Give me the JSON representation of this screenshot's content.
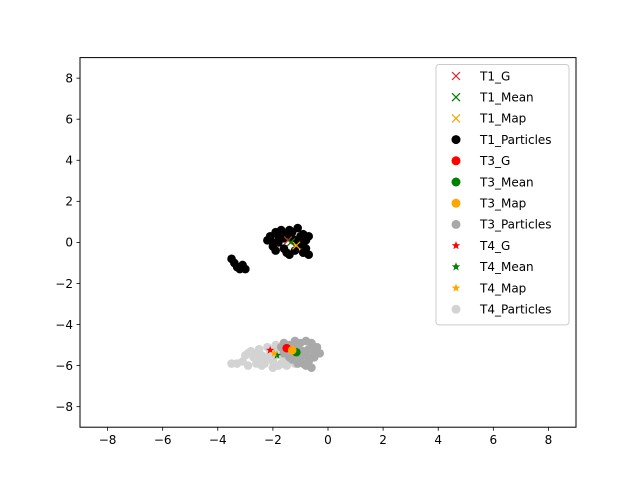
{
  "chart_data": {
    "type": "scatter",
    "title": "",
    "xlabel": "",
    "ylabel": "",
    "xlim": [
      -9,
      9
    ],
    "ylim": [
      -9,
      9
    ],
    "xticks": [
      -8,
      -6,
      -4,
      -2,
      0,
      2,
      4,
      6,
      8
    ],
    "yticks": [
      -8,
      -6,
      -4,
      -2,
      0,
      2,
      4,
      6,
      8
    ],
    "xtick_labels": [
      "−8",
      "−6",
      "−4",
      "−2",
      "0",
      "2",
      "4",
      "6",
      "8"
    ],
    "ytick_labels": [
      "−8",
      "−6",
      "−4",
      "−2",
      "0",
      "2",
      "4",
      "6",
      "8"
    ],
    "grid": false,
    "legend_position": "top-right",
    "series": [
      {
        "name": "T4_Particles",
        "marker": "circle",
        "color": "#d3d3d3",
        "points": [
          [
            -3.3,
            -5.9
          ],
          [
            -3.1,
            -5.8
          ],
          [
            -2.9,
            -6.0
          ],
          [
            -2.7,
            -5.6
          ],
          [
            -2.6,
            -5.9
          ],
          [
            -2.5,
            -5.7
          ],
          [
            -2.4,
            -5.5
          ],
          [
            -2.3,
            -5.9
          ],
          [
            -2.2,
            -5.6
          ],
          [
            -2.1,
            -5.3
          ],
          [
            -2.0,
            -5.8
          ],
          [
            -1.9,
            -5.5
          ],
          [
            -1.8,
            -5.2
          ],
          [
            -1.7,
            -5.9
          ],
          [
            -1.6,
            -5.6
          ],
          [
            -1.5,
            -5.3
          ],
          [
            -1.4,
            -5.7
          ],
          [
            -1.3,
            -5.5
          ],
          [
            -1.2,
            -5.9
          ],
          [
            -2.8,
            -5.3
          ],
          [
            -2.5,
            -5.2
          ],
          [
            -2.2,
            -5.1
          ],
          [
            -1.9,
            -5.0
          ],
          [
            -1.6,
            -4.9
          ],
          [
            -3.0,
            -5.5
          ],
          [
            -2.4,
            -6.0
          ],
          [
            -2.0,
            -6.1
          ],
          [
            -1.5,
            -6.0
          ],
          [
            -1.1,
            -5.6
          ],
          [
            -2.6,
            -5.4
          ],
          [
            -3.5,
            -5.9
          ],
          [
            -2.9,
            -5.4
          ],
          [
            -1.8,
            -6.0
          ],
          [
            -1.3,
            -5.1
          ]
        ]
      },
      {
        "name": "T3_Particles",
        "marker": "circle",
        "color": "#a9a9a9",
        "points": [
          [
            -1.6,
            -4.9
          ],
          [
            -1.4,
            -5.0
          ],
          [
            -1.2,
            -4.8
          ],
          [
            -1.0,
            -4.9
          ],
          [
            -0.8,
            -4.8
          ],
          [
            -0.6,
            -4.9
          ],
          [
            -0.4,
            -5.1
          ],
          [
            -0.3,
            -5.4
          ],
          [
            -0.5,
            -5.6
          ],
          [
            -0.7,
            -5.8
          ],
          [
            -0.9,
            -5.9
          ],
          [
            -0.6,
            -6.1
          ],
          [
            -0.8,
            -6.0
          ],
          [
            -1.0,
            -5.6
          ],
          [
            -1.2,
            -5.3
          ],
          [
            -1.4,
            -5.6
          ],
          [
            -1.6,
            -5.4
          ],
          [
            -1.7,
            -5.1
          ],
          [
            -1.5,
            -5.2
          ],
          [
            -1.1,
            -5.1
          ],
          [
            -0.9,
            -5.3
          ],
          [
            -0.7,
            -5.2
          ],
          [
            -0.5,
            -5.3
          ],
          [
            -1.3,
            -5.7
          ],
          [
            -1.1,
            -5.9
          ],
          [
            -0.8,
            -5.5
          ],
          [
            -0.6,
            -5.6
          ]
        ]
      },
      {
        "name": "T1_Particles",
        "marker": "circle",
        "color": "#000000",
        "points": [
          [
            -2.2,
            0.1
          ],
          [
            -2.1,
            0.3
          ],
          [
            -2.0,
            -0.2
          ],
          [
            -1.9,
            0.5
          ],
          [
            -1.8,
            0.0
          ],
          [
            -1.7,
            0.6
          ],
          [
            -1.6,
            -0.3
          ],
          [
            -1.5,
            0.4
          ],
          [
            -1.4,
            -0.6
          ],
          [
            -1.3,
            0.2
          ],
          [
            -1.2,
            -0.4
          ],
          [
            -1.1,
            0.7
          ],
          [
            -1.0,
            -0.1
          ],
          [
            -0.9,
            0.4
          ],
          [
            -0.8,
            -0.3
          ],
          [
            -0.7,
            0.3
          ],
          [
            -0.7,
            -0.6
          ],
          [
            -1.9,
            -0.4
          ],
          [
            -1.6,
            0.2
          ],
          [
            -1.3,
            0.5
          ],
          [
            -1.0,
            0.3
          ],
          [
            -0.8,
            0.1
          ],
          [
            -1.5,
            -0.5
          ],
          [
            -1.2,
            0.1
          ],
          [
            -1.8,
            0.3
          ],
          [
            -2.0,
            0.0
          ],
          [
            -1.4,
            0.6
          ],
          [
            -0.9,
            -0.5
          ],
          [
            -3.5,
            -0.8
          ],
          [
            -3.4,
            -1.0
          ],
          [
            -3.3,
            -1.2
          ],
          [
            -3.2,
            -1.3
          ],
          [
            -3.1,
            -1.1
          ],
          [
            -3.0,
            -1.3
          ]
        ]
      },
      {
        "name": "T1_G",
        "marker": "x",
        "color": "#d62728",
        "points": [
          [
            -1.45,
            0.1
          ]
        ]
      },
      {
        "name": "T1_Mean",
        "marker": "x",
        "color": "#008000",
        "points": [
          [
            -1.35,
            0.0
          ]
        ]
      },
      {
        "name": "T1_Map",
        "marker": "x",
        "color": "#ffa500",
        "points": [
          [
            -1.15,
            -0.15
          ]
        ]
      },
      {
        "name": "T3_G",
        "marker": "circle",
        "color": "#ff0000",
        "points": [
          [
            -1.5,
            -5.15
          ]
        ]
      },
      {
        "name": "T3_Mean",
        "marker": "circle",
        "color": "#008000",
        "points": [
          [
            -1.15,
            -5.35
          ]
        ]
      },
      {
        "name": "T3_Map",
        "marker": "circle",
        "color": "#ffa500",
        "points": [
          [
            -1.3,
            -5.25
          ]
        ]
      },
      {
        "name": "T4_G",
        "marker": "star",
        "color": "#ff0000",
        "points": [
          [
            -2.1,
            -5.25
          ]
        ]
      },
      {
        "name": "T4_Mean",
        "marker": "star",
        "color": "#008000",
        "points": [
          [
            -1.85,
            -5.5
          ]
        ]
      },
      {
        "name": "T4_Map",
        "marker": "star",
        "color": "#ffa500",
        "points": [
          [
            -1.95,
            -5.4
          ]
        ]
      }
    ],
    "legend": [
      {
        "label": "T1_G",
        "marker": "x",
        "color": "#d62728"
      },
      {
        "label": "T1_Mean",
        "marker": "x",
        "color": "#008000"
      },
      {
        "label": "T1_Map",
        "marker": "x",
        "color": "#ffa500"
      },
      {
        "label": "T1_Particles",
        "marker": "circle",
        "color": "#000000"
      },
      {
        "label": "T3_G",
        "marker": "circle",
        "color": "#ff0000"
      },
      {
        "label": "T3_Mean",
        "marker": "circle",
        "color": "#008000"
      },
      {
        "label": "T3_Map",
        "marker": "circle",
        "color": "#ffa500"
      },
      {
        "label": "T3_Particles",
        "marker": "circle",
        "color": "#a9a9a9"
      },
      {
        "label": "T4_G",
        "marker": "star",
        "color": "#ff0000"
      },
      {
        "label": "T4_Mean",
        "marker": "star",
        "color": "#008000"
      },
      {
        "label": "T4_Map",
        "marker": "star",
        "color": "#ffa500"
      },
      {
        "label": "T4_Particles",
        "marker": "circle",
        "color": "#d3d3d3"
      }
    ]
  }
}
